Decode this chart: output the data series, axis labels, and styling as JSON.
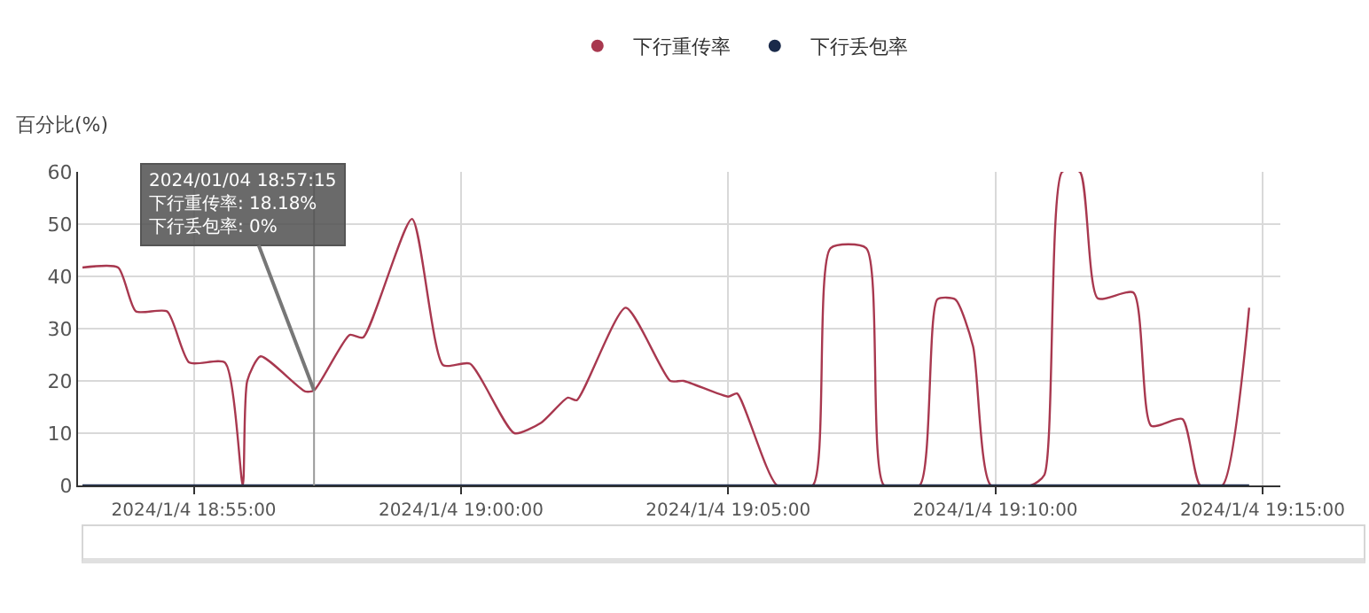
{
  "chart_data": {
    "type": "line",
    "ylabel": "百分比(%)",
    "x": [
      "2024-01-04T18:52:55",
      "2024-01-04T18:53:35",
      "2024-01-04T18:53:55",
      "2024-01-04T18:54:30",
      "2024-01-04T18:54:55",
      "2024-01-04T18:55:35",
      "2024-01-04T18:55:55",
      "2024-01-04T18:56:00",
      "2024-01-04T18:56:15",
      "2024-01-04T18:57:05",
      "2024-01-04T18:57:15",
      "2024-01-04T18:57:55",
      "2024-01-04T18:58:10",
      "2024-01-04T18:59:05",
      "2024-01-04T18:59:40",
      "2024-01-04T19:00:10",
      "2024-01-04T19:01:00",
      "2024-01-04T19:01:30",
      "2024-01-04T19:02:00",
      "2024-01-04T19:02:10",
      "2024-01-04T19:03:05",
      "2024-01-04T19:03:55",
      "2024-01-04T19:04:10",
      "2024-01-04T19:05:00",
      "2024-01-04T19:05:10",
      "2024-01-04T19:05:55",
      "2024-01-04T19:06:35",
      "2024-01-04T19:06:55",
      "2024-01-04T19:07:35",
      "2024-01-04T19:07:55",
      "2024-01-04T19:08:35",
      "2024-01-04T19:08:55",
      "2024-01-04T19:09:15",
      "2024-01-04T19:09:35",
      "2024-01-04T19:09:55",
      "2024-01-04T19:10:40",
      "2024-01-04T19:10:55",
      "2024-01-04T19:11:15",
      "2024-01-04T19:11:35",
      "2024-01-04T19:11:55",
      "2024-01-04T19:12:35",
      "2024-01-04T19:12:55",
      "2024-01-04T19:13:30",
      "2024-01-04T19:13:50",
      "2024-01-04T19:14:15",
      "2024-01-04T19:14:45"
    ],
    "series": [
      {
        "name": "下行重传率",
        "color": "#a8384f",
        "values": [
          41.7,
          41.7,
          33.3,
          33.3,
          23.5,
          23.5,
          0,
          20,
          24.7,
          18,
          18.18,
          28.8,
          28.3,
          51,
          23,
          23.3,
          10,
          12,
          16.8,
          16.3,
          34,
          20,
          20,
          17,
          17.6,
          0,
          0,
          45.4,
          45.4,
          0,
          0,
          35.6,
          35.6,
          26.6,
          0,
          0,
          2,
          60,
          60,
          35.8,
          36.9,
          11.4,
          12.7,
          0,
          0,
          34
        ]
      },
      {
        "name": "下行丢包率",
        "color": "#1a2a4a",
        "values": [
          0,
          0,
          0,
          0,
          0,
          0,
          0,
          0,
          0,
          0,
          0,
          0,
          0,
          0,
          0,
          0,
          0,
          0,
          0,
          0,
          0,
          0,
          0,
          0,
          0,
          0,
          0,
          0,
          0,
          0,
          0,
          0,
          0,
          0,
          0,
          0,
          0,
          0,
          0,
          0,
          0,
          0,
          0,
          0,
          0,
          0
        ]
      }
    ],
    "xlim": [
      "2024-01-04T18:52:50",
      "2024-01-04T19:15:20"
    ],
    "xticks": [
      {
        "value": "2024-01-04T18:55",
        "label": "2024/1/4 18:55:00"
      },
      {
        "value": "2024-01-04T19:00",
        "label": "2024/1/4 19:00:00"
      },
      {
        "value": "2024-01-04T19:05",
        "label": "2024/1/4 19:05:00"
      },
      {
        "value": "2024-01-04T19:10",
        "label": "2024/1/4 19:10:00"
      },
      {
        "value": "2024-01-04T19:15",
        "label": "2024/1/4 19:15:00"
      }
    ],
    "ylim": [
      0,
      60
    ],
    "yticks": [
      0,
      10,
      20,
      30,
      40,
      50,
      60
    ],
    "grid": true,
    "legend": "top",
    "marker": "none",
    "line_style": "solid",
    "ref_lines": [
      {
        "axis": "x",
        "value": "2024-01-04T18:57:15",
        "color": "#999999",
        "line_style": "solid"
      }
    ],
    "annotations": [
      {
        "text": "2024/01/04 18:57:15\n下行重传率: 18.18%\n下行丢包率: 0%",
        "x": "2024-01-04T18:57:15",
        "y": 18.18
      }
    ]
  }
}
